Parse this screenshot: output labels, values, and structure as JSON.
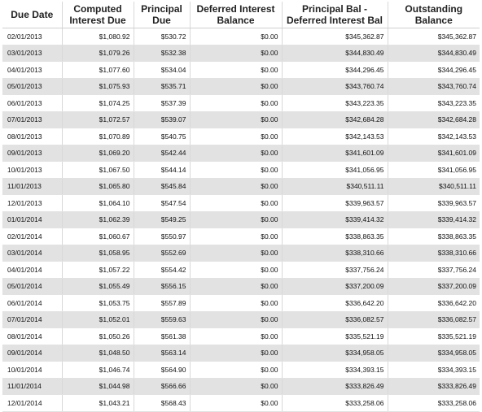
{
  "headers": [
    "Due Date",
    "Computed Interest Due",
    "Principal Due",
    "Deferred Interest Balance",
    "Principal Bal - Deferred Interest Bal",
    "Outstanding Balance"
  ],
  "header_lines": [
    [
      "Due Date",
      ""
    ],
    [
      "Computed",
      "Interest Due"
    ],
    [
      "Principal",
      "Due"
    ],
    [
      "Deferred Interest",
      "Balance"
    ],
    [
      "Principal Bal -",
      "Deferred Interest Bal"
    ],
    [
      "Outstanding",
      "Balance"
    ]
  ],
  "rows": [
    [
      "02/01/2013",
      "$1,080.92",
      "$530.72",
      "$0.00",
      "$345,362.87",
      "$345,362.87"
    ],
    [
      "03/01/2013",
      "$1,079.26",
      "$532.38",
      "$0.00",
      "$344,830.49",
      "$344,830.49"
    ],
    [
      "04/01/2013",
      "$1,077.60",
      "$534.04",
      "$0.00",
      "$344,296.45",
      "$344,296.45"
    ],
    [
      "05/01/2013",
      "$1,075.93",
      "$535.71",
      "$0.00",
      "$343,760.74",
      "$343,760.74"
    ],
    [
      "06/01/2013",
      "$1,074.25",
      "$537.39",
      "$0.00",
      "$343,223.35",
      "$343,223.35"
    ],
    [
      "07/01/2013",
      "$1,072.57",
      "$539.07",
      "$0.00",
      "$342,684.28",
      "$342,684.28"
    ],
    [
      "08/01/2013",
      "$1,070.89",
      "$540.75",
      "$0.00",
      "$342,143.53",
      "$342,143.53"
    ],
    [
      "09/01/2013",
      "$1,069.20",
      "$542.44",
      "$0.00",
      "$341,601.09",
      "$341,601.09"
    ],
    [
      "10/01/2013",
      "$1,067.50",
      "$544.14",
      "$0.00",
      "$341,056.95",
      "$341,056.95"
    ],
    [
      "11/01/2013",
      "$1,065.80",
      "$545.84",
      "$0.00",
      "$340,511.11",
      "$340,511.11"
    ],
    [
      "12/01/2013",
      "$1,064.10",
      "$547.54",
      "$0.00",
      "$339,963.57",
      "$339,963.57"
    ],
    [
      "01/01/2014",
      "$1,062.39",
      "$549.25",
      "$0.00",
      "$339,414.32",
      "$339,414.32"
    ],
    [
      "02/01/2014",
      "$1,060.67",
      "$550.97",
      "$0.00",
      "$338,863.35",
      "$338,863.35"
    ],
    [
      "03/01/2014",
      "$1,058.95",
      "$552.69",
      "$0.00",
      "$338,310.66",
      "$338,310.66"
    ],
    [
      "04/01/2014",
      "$1,057.22",
      "$554.42",
      "$0.00",
      "$337,756.24",
      "$337,756.24"
    ],
    [
      "05/01/2014",
      "$1,055.49",
      "$556.15",
      "$0.00",
      "$337,200.09",
      "$337,200.09"
    ],
    [
      "06/01/2014",
      "$1,053.75",
      "$557.89",
      "$0.00",
      "$336,642.20",
      "$336,642.20"
    ],
    [
      "07/01/2014",
      "$1,052.01",
      "$559.63",
      "$0.00",
      "$336,082.57",
      "$336,082.57"
    ],
    [
      "08/01/2014",
      "$1,050.26",
      "$561.38",
      "$0.00",
      "$335,521.19",
      "$335,521.19"
    ],
    [
      "09/01/2014",
      "$1,048.50",
      "$563.14",
      "$0.00",
      "$334,958.05",
      "$334,958.05"
    ],
    [
      "10/01/2014",
      "$1,046.74",
      "$564.90",
      "$0.00",
      "$334,393.15",
      "$334,393.15"
    ],
    [
      "11/01/2014",
      "$1,044.98",
      "$566.66",
      "$0.00",
      "$333,826.49",
      "$333,826.49"
    ],
    [
      "12/01/2014",
      "$1,043.21",
      "$568.43",
      "$0.00",
      "$333,258.06",
      "$333,258.06"
    ]
  ],
  "colors": {
    "shaded_row": "#e2e2e2",
    "grid_line": "#d8d8d8",
    "text": "#111111"
  }
}
